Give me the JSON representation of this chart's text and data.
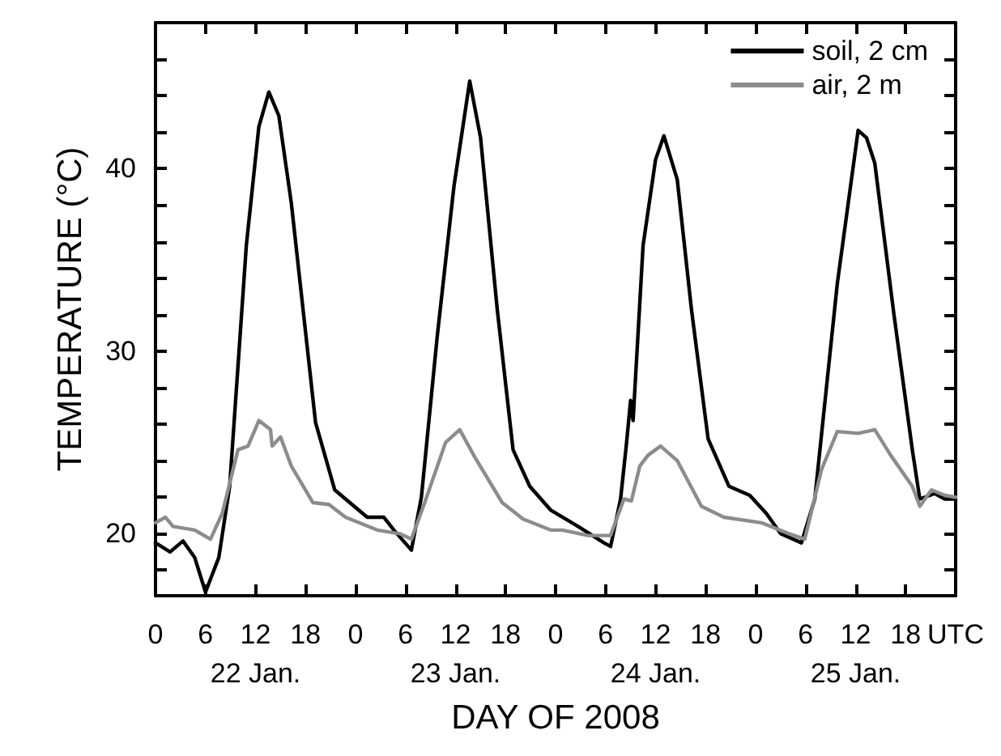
{
  "chart_data": {
    "type": "line",
    "xlabel": "DAY OF 2008",
    "ylabel": "TEMPERATURE (°C)",
    "xlim": [
      "2008-01-22T00:00",
      "2008-01-26T00:00"
    ],
    "ylim": [
      16.6,
      48
    ],
    "xticks": [
      {
        "value": "2008-01-22T00:00",
        "label": "0"
      },
      {
        "value": "2008-01-22T06:00",
        "label": "6"
      },
      {
        "value": "2008-01-22T12:00",
        "label": "12\n22 Jan."
      },
      {
        "value": "2008-01-22T18:00",
        "label": "18"
      },
      {
        "value": "2008-01-23T00:00",
        "label": "0"
      },
      {
        "value": "2008-01-23T06:00",
        "label": "6"
      },
      {
        "value": "2008-01-23T12:00",
        "label": "12\n23 Jan."
      },
      {
        "value": "2008-01-23T18:00",
        "label": "18"
      },
      {
        "value": "2008-01-24T00:00",
        "label": "0"
      },
      {
        "value": "2008-01-24T06:00",
        "label": "6"
      },
      {
        "value": "2008-01-24T12:00",
        "label": "12\n24 Jan."
      },
      {
        "value": "2008-01-24T18:00",
        "label": "18"
      },
      {
        "value": "2008-01-25T00:00",
        "label": "0"
      },
      {
        "value": "2008-01-25T06:00",
        "label": "6"
      },
      {
        "value": "2008-01-25T12:00",
        "label": "12\n25 Jan."
      },
      {
        "value": "2008-01-25T18:00",
        "label": "18"
      },
      {
        "value": "2008-01-26T00:00",
        "label": "UTC"
      }
    ],
    "yticks": [
      {
        "value": 18,
        "label": null
      },
      20,
      {
        "value": 22,
        "label": null
      },
      {
        "value": 24,
        "label": null
      },
      {
        "value": 26,
        "label": null
      },
      {
        "value": 28,
        "label": null
      },
      30,
      {
        "value": 32,
        "label": null
      },
      {
        "value": 34,
        "label": null
      },
      {
        "value": 36,
        "label": null
      },
      {
        "value": 38,
        "label": null
      },
      40,
      {
        "value": 42,
        "label": null
      },
      {
        "value": 44,
        "label": null
      },
      {
        "value": 46,
        "label": null
      }
    ],
    "grid": false,
    "legend": "top right",
    "marker": "none",
    "line_style": "solid",
    "series": [
      {
        "name": "soil, 2 cm",
        "color": "#000000",
        "x": [
          "2008-01-22T00:00",
          "2008-01-22T01:45",
          "2008-01-22T03:18",
          "2008-01-22T04:42",
          "2008-01-22T06:00",
          "2008-01-22T07:36",
          "2008-01-22T08:54",
          "2008-01-22T10:54",
          "2008-01-22T12:24",
          "2008-01-22T13:36",
          "2008-01-22T14:48",
          "2008-01-22T16:18",
          "2008-01-22T17:42",
          "2008-01-22T19:12",
          "2008-01-22T21:30",
          "2008-01-22T22:48",
          "2008-01-23T01:24",
          "2008-01-23T03:24",
          "2008-01-23T04:36",
          "2008-01-23T06:42",
          "2008-01-23T07:54",
          "2008-01-23T09:48",
          "2008-01-23T11:48",
          "2008-01-23T13:42",
          "2008-01-23T15:00",
          "2008-01-23T17:00",
          "2008-01-23T18:54",
          "2008-01-23T20:54",
          "2008-01-23T23:24",
          "2008-01-24T02:42",
          "2008-01-24T05:48",
          "2008-01-24T06:36",
          "2008-01-24T07:48",
          "2008-01-24T08:30",
          "2008-01-24T09:00",
          "2008-01-24T09:18",
          "2008-01-24T10:30",
          "2008-01-24T12:00",
          "2008-01-24T13:00",
          "2008-01-24T14:36",
          "2008-01-24T16:18",
          "2008-01-24T18:18",
          "2008-01-24T20:48",
          "2008-01-24T23:18",
          "2008-01-25T01:18",
          "2008-01-25T03:00",
          "2008-01-25T05:30",
          "2008-01-25T07:06",
          "2008-01-25T09:48",
          "2008-01-25T12:18",
          "2008-01-25T13:18",
          "2008-01-25T14:18",
          "2008-01-25T16:36",
          "2008-01-25T18:48",
          "2008-01-25T19:42",
          "2008-01-25T21:30",
          "2008-01-25T22:42",
          "2008-01-26T00:00"
        ],
        "values": [
          19.5,
          19,
          19.6,
          18.7,
          16.8,
          18.7,
          22.6,
          35.8,
          42.3,
          44.2,
          42.9,
          38.1,
          32.3,
          26.1,
          22.4,
          21.9,
          20.9,
          20.9,
          20.2,
          19.1,
          22,
          30.8,
          39,
          44.8,
          41.7,
          32.3,
          24.6,
          22.6,
          21.3,
          20.4,
          19.5,
          19.3,
          21.9,
          24.9,
          27.3,
          26.2,
          35.8,
          40.5,
          41.8,
          39.4,
          32.3,
          25.2,
          22.6,
          22.1,
          21.1,
          20,
          19.5,
          21.9,
          33.7,
          42.1,
          41.7,
          40.3,
          32,
          24.6,
          21.9,
          22.2,
          21.9,
          21.9
        ]
      },
      {
        "name": "air, 2 m",
        "color": "#8c8c8c",
        "x": [
          "2008-01-22T00:00",
          "2008-01-22T01:12",
          "2008-01-22T02:06",
          "2008-01-22T04:42",
          "2008-01-22T06:36",
          "2008-01-22T08:00",
          "2008-01-22T09:54",
          "2008-01-22T11:06",
          "2008-01-22T12:24",
          "2008-01-22T13:48",
          "2008-01-22T14:00",
          "2008-01-22T15:00",
          "2008-01-22T16:18",
          "2008-01-22T18:54",
          "2008-01-22T20:48",
          "2008-01-22T22:48",
          "2008-01-23T02:36",
          "2008-01-23T05:18",
          "2008-01-23T06:42",
          "2008-01-23T08:18",
          "2008-01-23T10:48",
          "2008-01-23T12:30",
          "2008-01-23T14:18",
          "2008-01-23T17:36",
          "2008-01-23T20:06",
          "2008-01-23T23:24",
          "2008-01-24T00:48",
          "2008-01-24T03:54",
          "2008-01-24T06:36",
          "2008-01-24T08:12",
          "2008-01-24T09:06",
          "2008-01-24T10:06",
          "2008-01-24T11:06",
          "2008-01-24T12:36",
          "2008-01-24T14:36",
          "2008-01-24T17:30",
          "2008-01-24T20:12",
          "2008-01-25T00:42",
          "2008-01-25T04:00",
          "2008-01-25T05:54",
          "2008-01-25T07:54",
          "2008-01-25T09:48",
          "2008-01-25T12:18",
          "2008-01-25T14:18",
          "2008-01-25T16:12",
          "2008-01-25T18:48",
          "2008-01-25T19:42",
          "2008-01-25T21:06",
          "2008-01-25T22:42",
          "2008-01-26T00:00"
        ],
        "values": [
          20.6,
          20.9,
          20.4,
          20.2,
          19.7,
          21.1,
          24.6,
          24.8,
          26.2,
          25.7,
          24.8,
          25.3,
          23.7,
          21.7,
          21.6,
          20.9,
          20.2,
          20,
          19.7,
          21.7,
          25,
          25.7,
          24.2,
          21.7,
          20.8,
          20.2,
          20.2,
          19.9,
          19.9,
          21.9,
          21.8,
          23.7,
          24.3,
          24.8,
          24,
          21.5,
          20.9,
          20.6,
          20,
          19.7,
          23.5,
          25.6,
          25.5,
          25.7,
          24.3,
          22.6,
          21.5,
          22.4,
          22.1,
          22
        ]
      }
    ]
  }
}
